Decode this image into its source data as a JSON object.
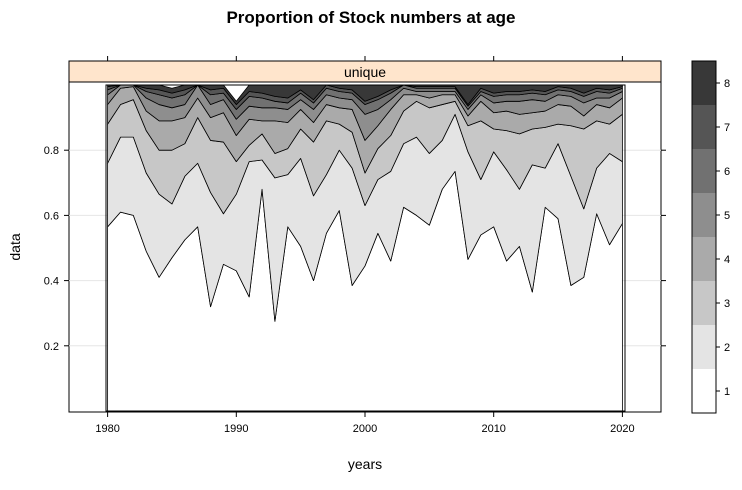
{
  "chart_data": {
    "type": "area",
    "title": "Proportion of Stock numbers at age",
    "panel_label": "unique",
    "xlabel": "years",
    "ylabel": "data",
    "x_ticks": [
      "1980",
      "1990",
      "2000",
      "2010",
      "2020"
    ],
    "x_tick_values": [
      1980,
      1990,
      2000,
      2010,
      2020
    ],
    "y_ticks": [
      "0.2",
      "0.4",
      "0.6",
      "0.8"
    ],
    "y_tick_values": [
      0.2,
      0.4,
      0.6,
      0.8
    ],
    "xlim": [
      1977,
      2023
    ],
    "ylim": [
      0,
      1
    ],
    "legend_labels": [
      "1",
      "2",
      "3",
      "4",
      "5",
      "6",
      "7",
      "8"
    ],
    "legend_placement": "right",
    "grid": true,
    "colors": [
      "#ffffff",
      "#e4e4e4",
      "#c7c7c7",
      "#aaaaaa",
      "#8e8e8e",
      "#717171",
      "#555555",
      "#383838"
    ],
    "strip_color": "#ffe5cc",
    "x": [
      1980,
      1981,
      1982,
      1983,
      1984,
      1985,
      1986,
      1987,
      1988,
      1989,
      1990,
      1991,
      1992,
      1993,
      1994,
      1995,
      1996,
      1997,
      1998,
      1999,
      2000,
      2001,
      2002,
      2003,
      2004,
      2005,
      2006,
      2007,
      2008,
      2009,
      2010,
      2011,
      2012,
      2013,
      2014,
      2015,
      2016,
      2017,
      2018,
      2019,
      2020
    ],
    "series": [
      {
        "name": "1",
        "values": [
          0.565,
          0.61,
          0.6,
          0.49,
          0.41,
          0.47,
          0.525,
          0.565,
          0.32,
          0.45,
          0.43,
          0.35,
          0.68,
          0.275,
          0.565,
          0.505,
          0.4,
          0.545,
          0.615,
          0.385,
          0.445,
          0.545,
          0.46,
          0.625,
          0.6,
          0.57,
          0.68,
          0.735,
          0.465,
          0.54,
          0.565,
          0.46,
          0.505,
          0.365,
          0.625,
          0.59,
          0.385,
          0.41,
          0.605,
          0.51,
          0.575
        ]
      },
      {
        "name": "2",
        "values": [
          0.195,
          0.23,
          0.24,
          0.24,
          0.255,
          0.165,
          0.195,
          0.195,
          0.35,
          0.155,
          0.235,
          0.415,
          0.09,
          0.44,
          0.16,
          0.27,
          0.26,
          0.18,
          0.185,
          0.36,
          0.185,
          0.165,
          0.275,
          0.195,
          0.24,
          0.22,
          0.15,
          0.175,
          0.33,
          0.17,
          0.23,
          0.28,
          0.175,
          0.39,
          0.12,
          0.23,
          0.335,
          0.21,
          0.14,
          0.28,
          0.19
        ]
      },
      {
        "name": "3",
        "values": [
          0.12,
          0.1,
          0.115,
          0.13,
          0.135,
          0.165,
          0.1,
          0.14,
          0.16,
          0.22,
          0.1,
          0.05,
          0.08,
          0.075,
          0.08,
          0.09,
          0.165,
          0.165,
          0.08,
          0.11,
          0.1,
          0.095,
          0.11,
          0.1,
          0.11,
          0.14,
          0.11,
          0.04,
          0.08,
          0.18,
          0.07,
          0.12,
          0.17,
          0.11,
          0.125,
          0.06,
          0.155,
          0.245,
          0.145,
          0.09,
          0.145
        ]
      },
      {
        "name": "4",
        "values": [
          0.06,
          0.05,
          0.04,
          0.06,
          0.09,
          0.09,
          0.08,
          0.06,
          0.07,
          0.09,
          0.08,
          0.08,
          0.04,
          0.1,
          0.08,
          0.06,
          0.06,
          0.05,
          0.05,
          0.07,
          0.1,
          0.07,
          0.08,
          0.05,
          0.02,
          0.03,
          0.03,
          0.02,
          0.03,
          0.06,
          0.05,
          0.06,
          0.06,
          0.05,
          0.05,
          0.06,
          0.06,
          0.04,
          0.05,
          0.05,
          0.05
        ]
      },
      {
        "name": "5",
        "values": [
          0.03,
          0.03,
          0.02,
          0.04,
          0.05,
          0.04,
          0.04,
          0.04,
          0.04,
          0.04,
          0.05,
          0.04,
          0.04,
          0.04,
          0.04,
          0.03,
          0.04,
          0.03,
          0.03,
          0.03,
          0.08,
          0.05,
          0.03,
          0.02,
          0.01,
          0.02,
          0.01,
          0.01,
          0.02,
          0.02,
          0.03,
          0.03,
          0.04,
          0.04,
          0.03,
          0.03,
          0.03,
          0.04,
          0.02,
          0.03,
          0.02
        ]
      },
      {
        "name": "6",
        "values": [
          0.015,
          0.015,
          0.015,
          0.02,
          0.03,
          0.03,
          0.03,
          0.02,
          0.03,
          0.02,
          0.03,
          0.03,
          0.03,
          0.02,
          0.02,
          0.02,
          0.02,
          0.02,
          0.02,
          0.02,
          0.03,
          0.03,
          0.02,
          0.01,
          0.01,
          0.01,
          0.01,
          0.01,
          0.01,
          0.01,
          0.02,
          0.02,
          0.02,
          0.02,
          0.02,
          0.015,
          0.015,
          0.02,
          0.02,
          0.015,
          0.01
        ]
      },
      {
        "name": "7",
        "values": [
          0.01,
          0.01,
          0.01,
          0.01,
          0.015,
          0.015,
          0.015,
          0.015,
          0.015,
          0.015,
          0.015,
          0.015,
          0.015,
          0.015,
          0.015,
          0.01,
          0.01,
          0.01,
          0.01,
          0.01,
          0.01,
          0.01,
          0.01,
          0.01,
          0.005,
          0.005,
          0.005,
          0.005,
          0.005,
          0.01,
          0.01,
          0.01,
          0.01,
          0.01,
          0.01,
          0.01,
          0.01,
          0.01,
          0.01,
          0.01,
          0.005
        ]
      },
      {
        "name": "8",
        "values": [
          0.005,
          0.005,
          0.005,
          0.01,
          0.015,
          0.015,
          0.015,
          0.015,
          0.015,
          0.01,
          0.01,
          0.02,
          0.025,
          0.035,
          0.04,
          0.015,
          0.045,
          0.0,
          0.01,
          0.015,
          0.05,
          0.035,
          0.015,
          0.0,
          0.005,
          0.005,
          0.005,
          0.005,
          0.06,
          0.01,
          0.025,
          0.02,
          0.02,
          0.015,
          0.02,
          0.005,
          0.01,
          0.025,
          0.01,
          0.015,
          0.005
        ]
      }
    ]
  }
}
